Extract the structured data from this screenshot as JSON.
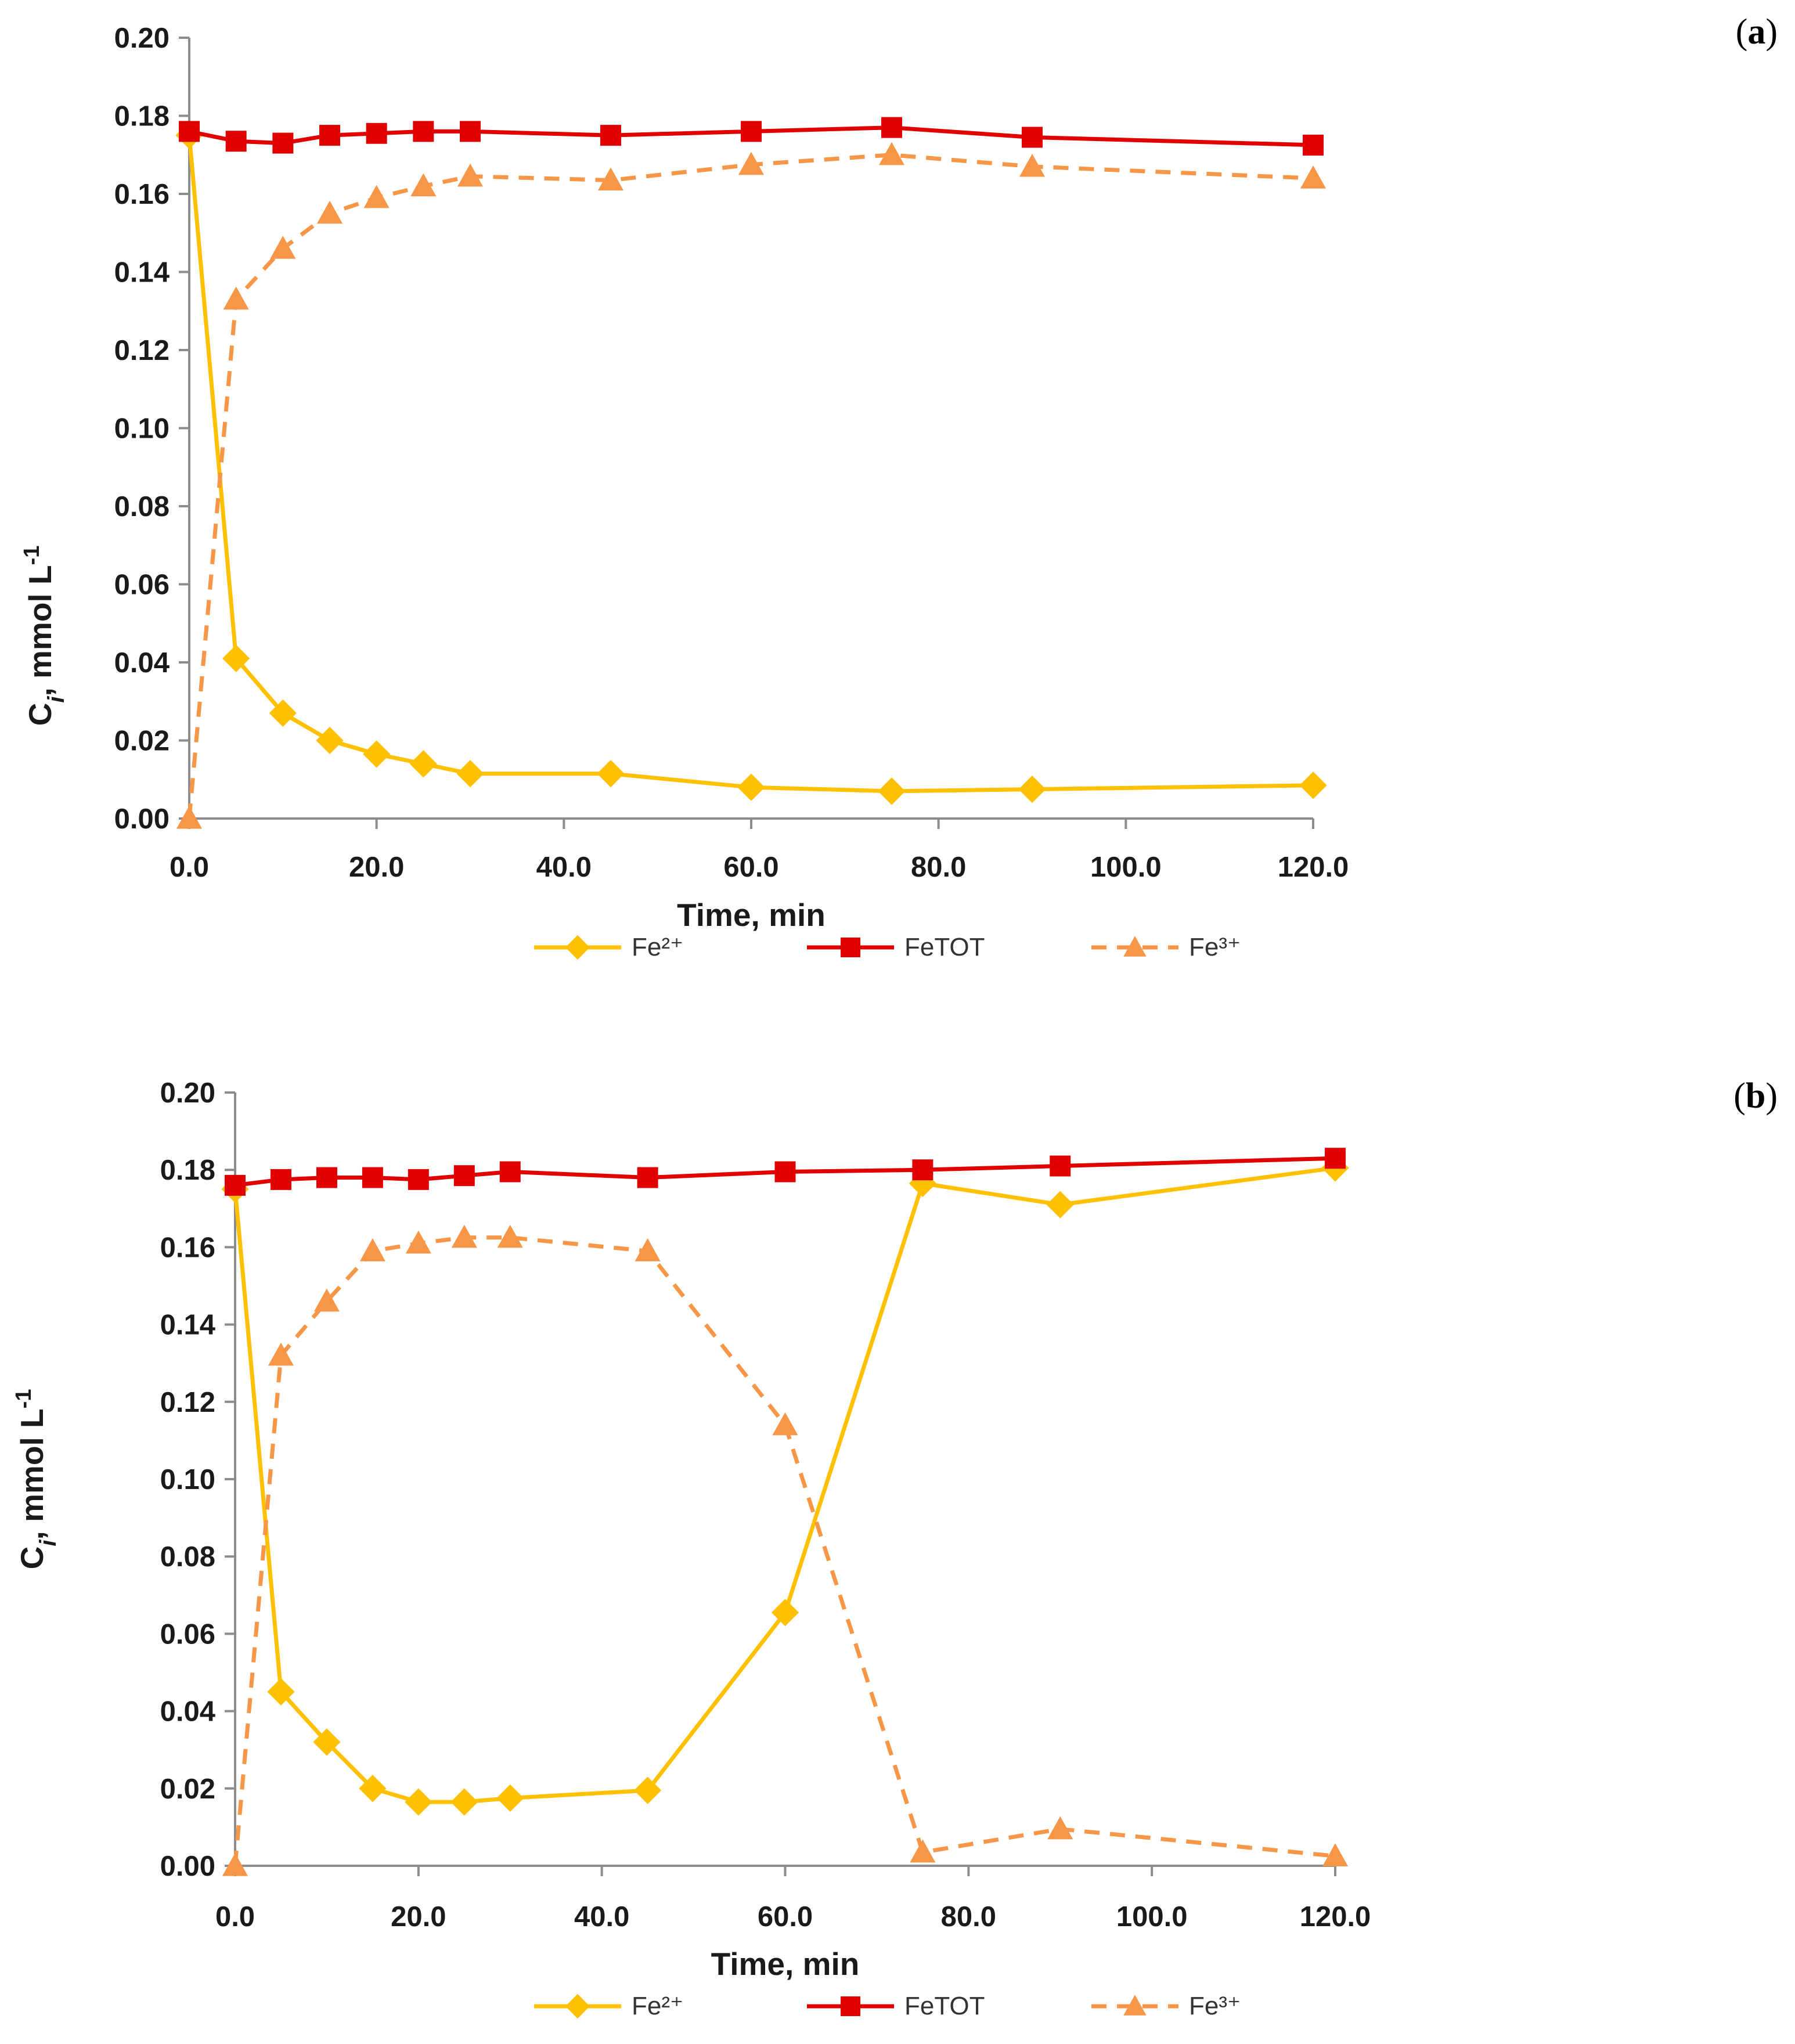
{
  "chart_data": [
    {
      "panel": "(a)",
      "panel_letter": "a",
      "type": "line",
      "xlabel": "Time, min",
      "ylabel": {
        "main": "C",
        "sub": "i",
        "rest": ", mmol L",
        "sup": "-1"
      },
      "xlim": [
        0,
        120
      ],
      "ylim": [
        0,
        0.2
      ],
      "xticks": [
        "0.0",
        "20.0",
        "40.0",
        "60.0",
        "80.0",
        "100.0",
        "120.0"
      ],
      "yticks": [
        "0.00",
        "0.02",
        "0.04",
        "0.06",
        "0.08",
        "0.10",
        "0.12",
        "0.14",
        "0.16",
        "0.18",
        "0.20"
      ],
      "x": [
        0,
        5,
        10,
        15,
        20,
        25,
        30,
        45,
        60,
        75,
        90,
        120
      ],
      "series": [
        {
          "name": "Fe²⁺",
          "color": "#FFC000",
          "marker": "diamond",
          "dashed": false,
          "values": [
            0.175,
            0.041,
            0.027,
            0.02,
            0.0165,
            0.014,
            0.0115,
            0.0115,
            0.008,
            0.007,
            0.0075,
            0.0085
          ]
        },
        {
          "name": "FeTOT",
          "color": "#E00000",
          "marker": "square",
          "dashed": false,
          "values": [
            0.176,
            0.1735,
            0.173,
            0.175,
            0.1755,
            0.176,
            0.176,
            0.175,
            0.176,
            0.177,
            0.1745,
            0.1725
          ]
        },
        {
          "name": "Fe³⁺",
          "color": "#F79646",
          "marker": "triangle",
          "dashed": true,
          "values": [
            0.0,
            0.133,
            0.146,
            0.155,
            0.159,
            0.162,
            0.1645,
            0.1635,
            0.1675,
            0.17,
            0.167,
            0.164
          ]
        }
      ]
    },
    {
      "panel": "(b)",
      "panel_letter": "b",
      "type": "line",
      "xlabel": "Time, min",
      "ylabel": {
        "main": "C",
        "sub": "i",
        "rest": ", mmol L",
        "sup": "-1"
      },
      "xlim": [
        0,
        120
      ],
      "ylim": [
        0,
        0.2
      ],
      "xticks": [
        "0.0",
        "20.0",
        "40.0",
        "60.0",
        "80.0",
        "100.0",
        "120.0"
      ],
      "yticks": [
        "0.00",
        "0.02",
        "0.04",
        "0.06",
        "0.08",
        "0.10",
        "0.12",
        "0.14",
        "0.16",
        "0.18",
        "0.20"
      ],
      "x": [
        0,
        5,
        10,
        15,
        20,
        25,
        30,
        45,
        60,
        75,
        90,
        120
      ],
      "series": [
        {
          "name": "Fe²⁺",
          "color": "#FFC000",
          "marker": "diamond",
          "dashed": false,
          "values": [
            0.175,
            0.045,
            0.032,
            0.02,
            0.0165,
            0.0165,
            0.0175,
            0.0195,
            0.0655,
            0.1765,
            0.171,
            0.1805
          ]
        },
        {
          "name": "FeTOT",
          "color": "#E00000",
          "marker": "square",
          "dashed": false,
          "values": [
            0.176,
            0.1775,
            0.178,
            0.178,
            0.1775,
            0.1785,
            0.1795,
            0.178,
            0.1795,
            0.18,
            0.181,
            0.183
          ]
        },
        {
          "name": "Fe³⁺",
          "color": "#F79646",
          "marker": "triangle",
          "dashed": true,
          "values": [
            0.0,
            0.132,
            0.146,
            0.159,
            0.161,
            0.1625,
            0.1625,
            0.159,
            0.114,
            0.0035,
            0.0095,
            0.0025
          ]
        }
      ]
    }
  ]
}
